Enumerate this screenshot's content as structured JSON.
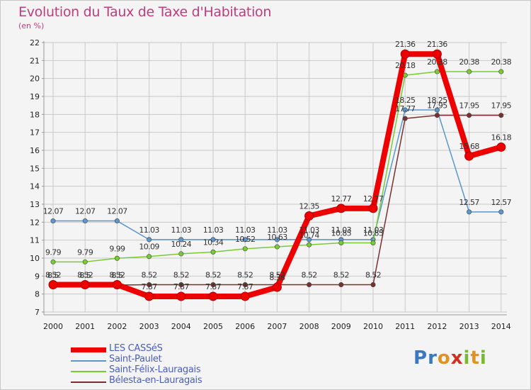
{
  "title": "Evolution du Taux de Taxe d'Habitation",
  "unit": "(en %)",
  "logo": {
    "text": "Proxiti"
  },
  "colors": {
    "background": "#f4f4f4",
    "title": "#c03c7c",
    "grid": "#c9c9c9",
    "axis_text": "#222222",
    "legend_text": "#4a5ec4"
  },
  "chart_data": {
    "type": "line",
    "title": "Evolution du Taux de Taxe d'Habitation",
    "ylabel": "(en %)",
    "xlabel": "",
    "x": [
      "2000",
      "2001",
      "2002",
      "2003",
      "2004",
      "2005",
      "2006",
      "2007",
      "2008",
      "2009",
      "2010",
      "2011",
      "2012",
      "2013",
      "2014"
    ],
    "ylim": [
      7,
      22
    ],
    "yticks": [
      "7",
      "8",
      "9",
      "10",
      "11",
      "12",
      "13",
      "14",
      "15",
      "16",
      "17",
      "18",
      "19",
      "20",
      "21",
      "22"
    ],
    "grid": true,
    "legend_position": "bottom-left",
    "series": [
      {
        "name": "LES CASSéS",
        "color": "#ee0000",
        "values": [
          8.52,
          8.52,
          8.52,
          7.87,
          7.87,
          7.87,
          7.87,
          8.38,
          12.35,
          12.77,
          12.77,
          21.36,
          21.36,
          15.68,
          16.18
        ],
        "labels": [
          "8.52",
          "8.52",
          "8.52",
          "7.87",
          "7.87",
          "7.87",
          "7.87",
          "8.38",
          "12.35",
          "12.77",
          "12.77",
          "21.36",
          "21.36",
          "15.68",
          "16.18"
        ]
      },
      {
        "name": "Saint-Paulet",
        "color": "#5b96cc",
        "values": [
          12.07,
          12.07,
          12.07,
          11.03,
          11.03,
          11.03,
          11.03,
          11.03,
          11.03,
          11.03,
          11.03,
          18.25,
          18.25,
          12.57,
          12.57
        ],
        "labels": [
          "12.07",
          "12.07",
          "12.07",
          "11.03",
          "11.03",
          "11.03",
          "11.03",
          "11.03",
          "11.03",
          "11.03",
          "11.03",
          "18.25",
          "18.25",
          "12.57",
          "12.57"
        ]
      },
      {
        "name": "Saint-Félix-Lauragais",
        "color": "#77cc33",
        "values": [
          9.79,
          9.79,
          9.99,
          10.09,
          10.24,
          10.34,
          10.52,
          10.63,
          10.74,
          10.85,
          10.85,
          20.18,
          20.38,
          20.38,
          20.38
        ],
        "labels": [
          "9.79",
          "9.79",
          "9.99",
          "10.09",
          "10.24",
          "10.34",
          "10.52",
          "10.63",
          "10.74",
          "10.85",
          "10.85",
          "20.18",
          "20.38",
          "20.38",
          "20.38"
        ]
      },
      {
        "name": "Bélesta-en-Lauragais",
        "color": "#7a3030",
        "values": [
          8.5,
          8.5,
          8.5,
          8.52,
          8.52,
          8.52,
          8.52,
          8.52,
          8.52,
          8.52,
          8.52,
          17.77,
          17.95,
          17.95,
          17.95
        ],
        "labels": [
          "8.5",
          "8.5",
          "8.5",
          "8.52",
          "8.52",
          "8.52",
          "8.52",
          "8.52",
          "8.52",
          "8.52",
          "8.52",
          "17.77",
          "17.95",
          "17.95",
          "17.95"
        ]
      }
    ]
  }
}
